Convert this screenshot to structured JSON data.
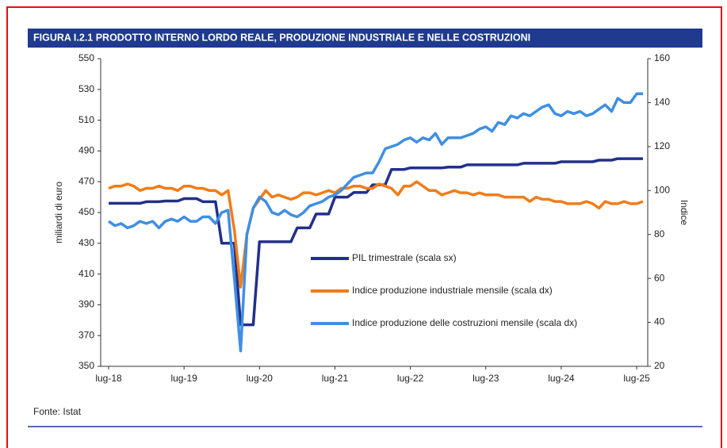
{
  "chart_data": {
    "type": "line",
    "title": "FIGURA I.2.1 PRODOTTO INTERNO LORDO REALE, PRODUZIONE INDUSTRIALE E NELLE COSTRUZIONI",
    "ylabel": "miliardi di euro",
    "y2label": "Indice",
    "source": "Fonte: Istat",
    "legend": "center",
    "categories": [
      "lug-18",
      null,
      null,
      null,
      null,
      null,
      null,
      null,
      null,
      null,
      null,
      null,
      "lug-19",
      null,
      null,
      null,
      null,
      null,
      null,
      null,
      null,
      null,
      null,
      null,
      "lug-20",
      null,
      null,
      null,
      null,
      null,
      null,
      null,
      null,
      null,
      null,
      null,
      "lug-21",
      null,
      null,
      null,
      null,
      null,
      null,
      null,
      null,
      null,
      null,
      null,
      "lug-22",
      null,
      null,
      null,
      null,
      null,
      null,
      null,
      null,
      null,
      null,
      null,
      "lug-23",
      null,
      null,
      null,
      null,
      null,
      null,
      null,
      null,
      null,
      null,
      null,
      "lug-24",
      null,
      null,
      null,
      null,
      null,
      null,
      null,
      null,
      null,
      null,
      null,
      "lug-25",
      null
    ],
    "ylim": [
      350,
      550
    ],
    "yticks": [
      350,
      370,
      390,
      410,
      430,
      450,
      470,
      490,
      510,
      530,
      550
    ],
    "y2lim": [
      20,
      160
    ],
    "y2ticks": [
      20,
      40,
      60,
      80,
      100,
      120,
      140,
      160
    ],
    "series": [
      {
        "name": "PIL trimestrale (scala sx)",
        "color": "#22308c",
        "values": [
          456,
          456,
          456,
          456,
          456,
          456,
          457,
          457,
          457,
          457.5,
          457.5,
          457.5,
          459,
          459,
          459,
          457,
          457,
          457,
          430,
          430,
          430,
          377,
          377,
          377,
          431,
          431,
          431,
          431,
          431,
          431,
          440,
          440,
          440,
          449,
          449,
          449,
          460,
          460,
          460,
          463,
          463,
          463,
          468,
          468,
          468,
          478,
          478,
          478,
          479,
          479,
          479,
          479,
          479,
          479,
          479.5,
          479.5,
          479.5,
          481,
          481,
          481,
          481,
          481,
          481,
          481,
          481,
          481,
          482,
          482,
          482,
          482,
          482,
          482,
          483,
          483,
          483,
          483,
          483,
          483,
          484,
          484,
          484,
          485,
          485,
          485,
          485,
          485
        ]
      },
      {
        "name": "Indice produzione industriale mensile (scala dx)",
        "color": "#f07d1a",
        "axis": "y2",
        "values": [
          101,
          102,
          102,
          103,
          102,
          100,
          101,
          101,
          102,
          101,
          101,
          100,
          102,
          102,
          101,
          101,
          100,
          100,
          98,
          100,
          82,
          56,
          80,
          92,
          96,
          100,
          97,
          98,
          97,
          96,
          97,
          99,
          99,
          98,
          99,
          100,
          99,
          101,
          101,
          102,
          102,
          101,
          101,
          103,
          102,
          101,
          98,
          102,
          102,
          104,
          102,
          100,
          100,
          98,
          99,
          100,
          99,
          99,
          98,
          99,
          98,
          98,
          98,
          97,
          97,
          97,
          97,
          95,
          97,
          96,
          96,
          95,
          95,
          94,
          94,
          94,
          95,
          94,
          92,
          95,
          94,
          94,
          95,
          94,
          94,
          95
        ]
      },
      {
        "name": "Indice produzione delle costruzioni mensile (scala dx)",
        "color": "#3f8fe3",
        "axis": "y2",
        "values": [
          86,
          84,
          85,
          83,
          84,
          86,
          85,
          86,
          83,
          86,
          87,
          86,
          88,
          86,
          86,
          88,
          88,
          85,
          90,
          91,
          60,
          27,
          80,
          92,
          97,
          95,
          90,
          89,
          91,
          89,
          88,
          90,
          93,
          94,
          95,
          97,
          98,
          100,
          103,
          106,
          107,
          108,
          108,
          113,
          119,
          120,
          121,
          123,
          124,
          122,
          124,
          123,
          126,
          121,
          124,
          124,
          124,
          125,
          126,
          128,
          129,
          127,
          131,
          130,
          134,
          133,
          135,
          134,
          136,
          138,
          139,
          135,
          134,
          136,
          135,
          136,
          134,
          135,
          137,
          139,
          136,
          142,
          140,
          140,
          144,
          144
        ]
      }
    ]
  }
}
